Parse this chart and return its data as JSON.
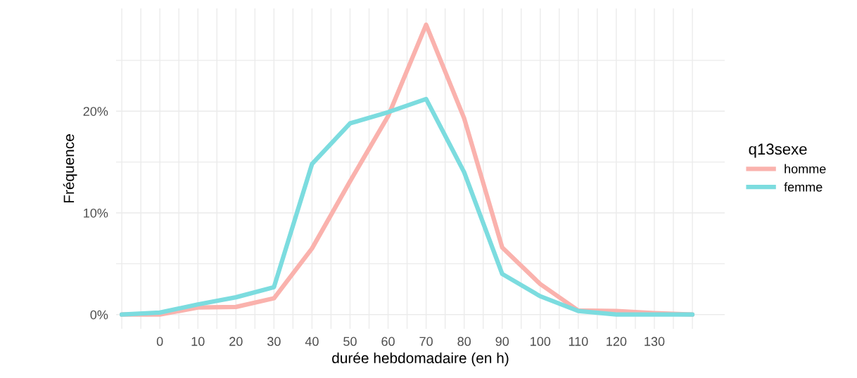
{
  "chart_data": {
    "type": "line",
    "xlabel": "durée hebdomadaire (en h)",
    "ylabel": "Fréquence",
    "legend_title": "q13sexe",
    "x": [
      -10,
      0,
      10,
      20,
      30,
      40,
      50,
      60,
      70,
      80,
      90,
      100,
      110,
      120,
      130,
      140
    ],
    "series": [
      {
        "name": "homme",
        "color": "#fab2ad",
        "values": [
          0,
          0,
          0.7,
          0.75,
          1.6,
          6.5,
          13.1,
          19.5,
          28.5,
          19.3,
          6.6,
          3.0,
          0.4,
          0.35,
          0.15,
          0
        ]
      },
      {
        "name": "femme",
        "color": "#7cdcdf",
        "values": [
          0,
          0.2,
          1.0,
          1.7,
          2.7,
          14.8,
          18.8,
          19.9,
          21.2,
          14.0,
          4.0,
          1.8,
          0.35,
          0,
          0,
          0
        ]
      }
    ],
    "xlim": [
      -11.5,
      148.5
    ],
    "ylim": [
      -1.4,
      30.1
    ],
    "xticks": [
      {
        "value": -10,
        "label": null
      },
      {
        "value": -5,
        "label": null
      },
      0,
      {
        "value": 5,
        "label": null
      },
      10,
      {
        "value": 15,
        "label": null
      },
      20,
      {
        "value": 25,
        "label": null
      },
      30,
      {
        "value": 35,
        "label": null
      },
      40,
      {
        "value": 45,
        "label": null
      },
      50,
      {
        "value": 55,
        "label": null
      },
      60,
      {
        "value": 65,
        "label": null
      },
      70,
      {
        "value": 75,
        "label": null
      },
      80,
      {
        "value": 85,
        "label": null
      },
      90,
      {
        "value": 95,
        "label": null
      },
      100,
      {
        "value": 105,
        "label": null
      },
      110,
      {
        "value": 115,
        "label": null
      },
      120,
      {
        "value": 125,
        "label": null
      },
      130,
      {
        "value": 135,
        "label": null
      },
      {
        "value": 140,
        "label": null
      }
    ],
    "yticks": [
      {
        "value": 0,
        "label": "0%"
      },
      {
        "value": 5,
        "label": null
      },
      {
        "value": 10,
        "label": "10%"
      },
      {
        "value": 15,
        "label": null
      },
      {
        "value": 20,
        "label": "20%"
      },
      {
        "value": 25,
        "label": null
      }
    ],
    "grid": true,
    "legend": "right",
    "line_style": "solid",
    "marker": "none"
  }
}
